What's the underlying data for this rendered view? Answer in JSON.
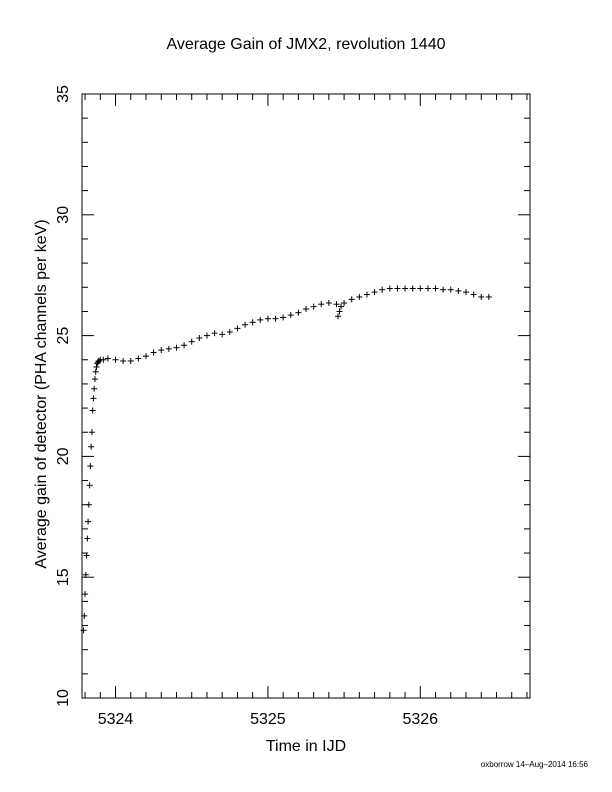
{
  "chart_data": {
    "type": "scatter",
    "title": "Average Gain of JMX2, revolution 1440",
    "xlabel": "Time in IJD",
    "ylabel": "Average gain of detector (PHA channels per keV)",
    "xlim": [
      5323.78,
      5326.72
    ],
    "ylim": [
      10,
      35
    ],
    "xticks": [
      "5324",
      "5325",
      "5326"
    ],
    "yticks": [
      "10",
      "15",
      "20",
      "25",
      "30",
      "35"
    ],
    "marker": "+",
    "grid": false,
    "legend": "none",
    "series": [
      {
        "x": [
          5323.79,
          5323.795,
          5323.8,
          5323.805,
          5323.81,
          5323.815,
          5323.82,
          5323.825,
          5323.83,
          5323.835,
          5323.84,
          5323.845,
          5323.85,
          5323.855,
          5323.86,
          5323.865,
          5323.87,
          5323.875,
          5323.88,
          5323.885,
          5323.89,
          5323.9,
          5323.92,
          5323.95,
          5324.0,
          5324.05,
          5324.1,
          5324.15,
          5324.2,
          5324.25,
          5324.3,
          5324.35,
          5324.4,
          5324.45,
          5324.5,
          5324.55,
          5324.6,
          5324.65,
          5324.7,
          5324.75,
          5324.8,
          5324.85,
          5324.9,
          5324.95,
          5325.0,
          5325.05,
          5325.1,
          5325.15,
          5325.2,
          5325.25,
          5325.3,
          5325.35,
          5325.4,
          5325.45,
          5325.46,
          5325.47,
          5325.48,
          5325.5,
          5325.55,
          5325.6,
          5325.65,
          5325.7,
          5325.75,
          5325.8,
          5325.85,
          5325.9,
          5325.95,
          5326.0,
          5326.05,
          5326.1,
          5326.15,
          5326.2,
          5326.25,
          5326.3,
          5326.35,
          5326.4,
          5326.45
        ],
        "y": [
          12.8,
          13.4,
          14.3,
          15.1,
          15.9,
          16.6,
          17.3,
          18.0,
          18.8,
          19.6,
          20.4,
          21.0,
          21.9,
          22.4,
          22.8,
          23.2,
          23.5,
          23.7,
          23.85,
          23.9,
          23.95,
          24.0,
          24.0,
          24.05,
          24.0,
          23.95,
          23.95,
          24.05,
          24.15,
          24.3,
          24.4,
          24.45,
          24.5,
          24.6,
          24.75,
          24.9,
          25.0,
          25.1,
          25.05,
          25.15,
          25.3,
          25.45,
          25.55,
          25.65,
          25.7,
          25.7,
          25.75,
          25.85,
          25.95,
          26.1,
          26.2,
          26.3,
          26.35,
          26.3,
          25.8,
          26.0,
          26.2,
          26.35,
          26.5,
          26.6,
          26.7,
          26.8,
          26.9,
          26.95,
          26.95,
          26.95,
          26.95,
          26.95,
          26.95,
          26.95,
          26.9,
          26.9,
          26.85,
          26.8,
          26.7,
          26.6,
          26.6
        ]
      }
    ]
  },
  "footer": "oxborrow 14–Aug–2014 16:56"
}
